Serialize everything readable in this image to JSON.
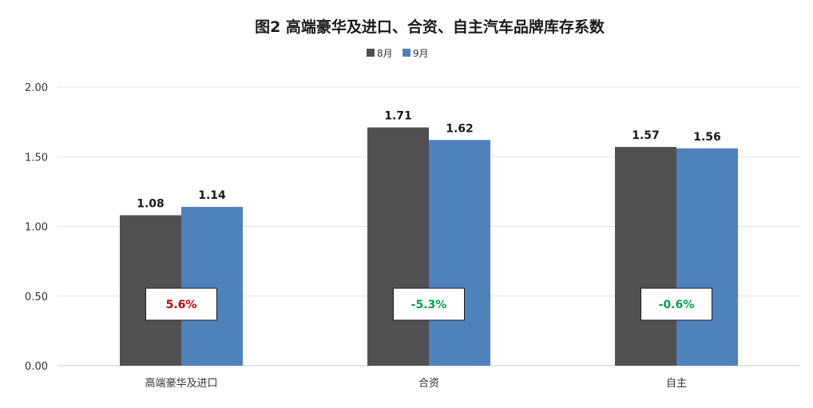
{
  "chart_data": {
    "type": "bar",
    "title": "图2  高端豪华及进口、合资、自主汽车品牌库存系数",
    "categories": [
      "高端豪华及进口",
      "合资",
      "自主"
    ],
    "series": [
      {
        "name": "8月",
        "values": [
          1.08,
          1.71,
          1.57
        ],
        "color": "#505050"
      },
      {
        "name": "9月",
        "values": [
          1.14,
          1.62,
          1.56
        ],
        "color": "#4f81bd"
      }
    ],
    "data_labels": [
      [
        "1.08",
        "1.71",
        "1.57"
      ],
      [
        "1.14",
        "1.62",
        "1.56"
      ]
    ],
    "changes": [
      {
        "text": "5.6%",
        "color": "#c00000"
      },
      {
        "text": "-5.3%",
        "color": "#00a04a"
      },
      {
        "text": "-0.6%",
        "color": "#00a04a"
      }
    ],
    "yticks": [
      "0.00",
      "0.50",
      "1.00",
      "1.50",
      "2.00"
    ],
    "ylim": [
      0,
      2
    ],
    "xlabel": "",
    "ylabel": "",
    "legend_position": "top-center",
    "grid": true
  }
}
